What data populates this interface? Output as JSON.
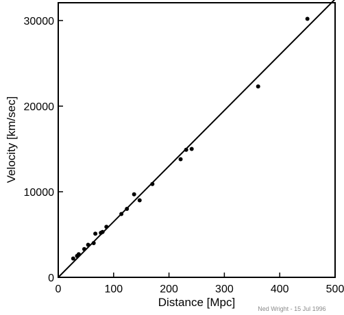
{
  "chart_data": {
    "type": "scatter",
    "xlabel": "Distance [Mpc]",
    "ylabel": "Velocity [km/sec]",
    "xlim": [
      0,
      500
    ],
    "ylim": [
      0,
      32000
    ],
    "x_ticks": [
      0,
      100,
      200,
      300,
      400,
      500
    ],
    "y_ticks": [
      0,
      10000,
      20000,
      30000
    ],
    "grid": false,
    "fit_line": {
      "points": [
        [
          0,
          0
        ],
        [
          500,
          32500
        ]
      ]
    },
    "series": [
      {
        "points": [
          [
            27,
            2200
          ],
          [
            34,
            2500
          ],
          [
            37,
            2700
          ],
          [
            47,
            3300
          ],
          [
            54,
            3800
          ],
          [
            64,
            4000
          ],
          [
            67,
            5100
          ],
          [
            77,
            5200
          ],
          [
            80,
            5300
          ],
          [
            87,
            5900
          ],
          [
            114,
            7400
          ],
          [
            124,
            8000
          ],
          [
            137,
            9700
          ],
          [
            147,
            9000
          ],
          [
            170,
            10900
          ],
          [
            221,
            13800
          ],
          [
            231,
            14900
          ],
          [
            241,
            15000
          ],
          [
            361,
            22300
          ],
          [
            450,
            30200
          ]
        ]
      }
    ],
    "annotations": [
      "Ned Wright - 15 Jul 1996"
    ]
  },
  "colors": {
    "ink": "#000000",
    "credit": "#8a8a8a",
    "background": "#ffffff"
  }
}
